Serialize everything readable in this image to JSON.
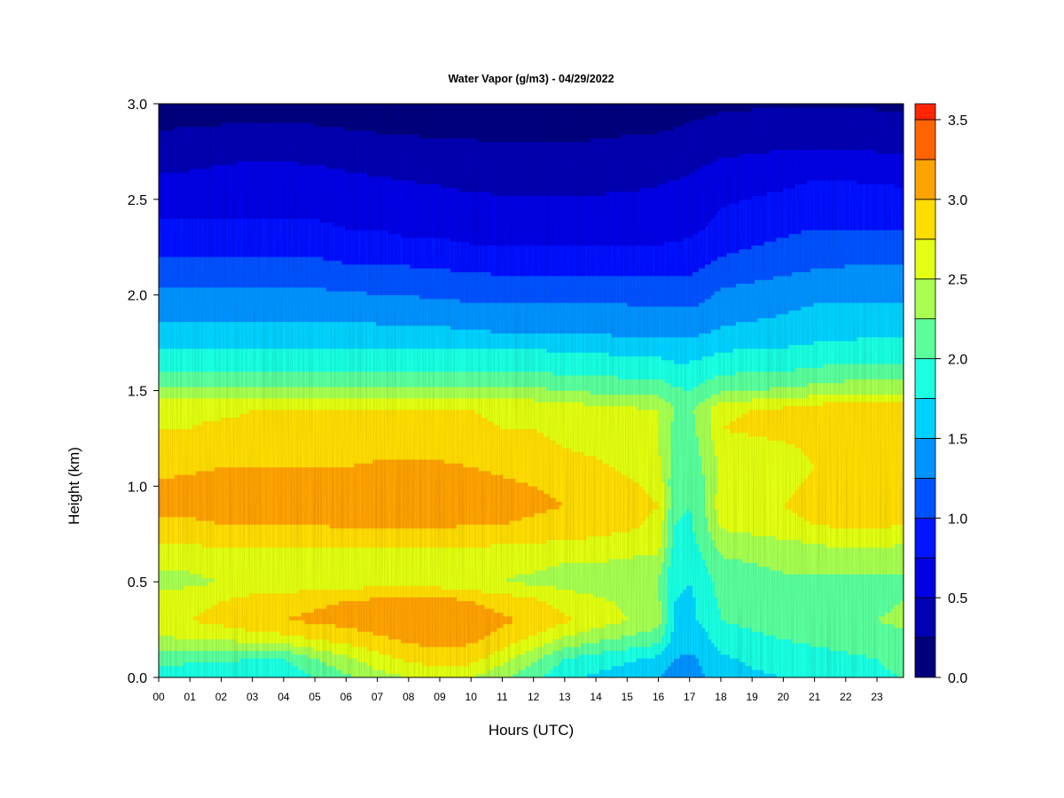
{
  "chart_data": {
    "type": "heatmap",
    "title": "Water Vapor (g/m3) - 04/29/2022",
    "xlabel": "Hours (UTC)",
    "ylabel": "Height (km)",
    "x_ticks": [
      "00",
      "01",
      "02",
      "03",
      "04",
      "05",
      "06",
      "07",
      "08",
      "09",
      "10",
      "11",
      "12",
      "13",
      "14",
      "15",
      "16",
      "17",
      "18",
      "19",
      "20",
      "21",
      "22",
      "23"
    ],
    "xlim": [
      0,
      23.85
    ],
    "ylim": [
      0,
      3.0
    ],
    "y_ticks": [
      "0.0",
      "0.5",
      "1.0",
      "1.5",
      "2.0",
      "2.5",
      "3.0"
    ],
    "colorbar": {
      "range": [
        0,
        3.6
      ],
      "tick_labels": [
        "0.0",
        "0.5",
        "1.0",
        "1.5",
        "2.0",
        "2.5",
        "3.0",
        "3.5"
      ],
      "levels": [
        0.0,
        0.25,
        0.5,
        0.75,
        1.0,
        1.25,
        1.5,
        1.75,
        2.0,
        2.25,
        2.5,
        2.75,
        3.0,
        3.25,
        3.5,
        3.6
      ],
      "colors": [
        "#00007f",
        "#0000b2",
        "#0000e5",
        "#0016ff",
        "#0052ff",
        "#0093ff",
        "#00d2ff",
        "#1dffe2",
        "#5aff9c",
        "#a6ff51",
        "#e2ff14",
        "#ffdd00",
        "#ffa300",
        "#ff6400",
        "#ff2500",
        "#e50000",
        "#b40000",
        "#800000"
      ]
    },
    "height_levels_km": [
      0.0,
      0.1,
      0.2,
      0.3,
      0.4,
      0.5,
      0.6,
      0.7,
      0.8,
      0.9,
      1.0,
      1.1,
      1.2,
      1.3,
      1.4,
      1.5,
      1.6,
      1.7,
      1.8,
      1.9,
      2.0,
      2.1,
      2.2,
      2.3,
      2.4,
      2.5,
      2.6,
      2.7,
      2.8,
      2.9,
      3.0
    ],
    "time_hours": [
      0,
      1,
      2,
      3,
      4,
      5,
      6,
      7,
      8,
      9,
      10,
      11,
      12,
      13,
      14,
      15,
      16,
      16.5,
      17,
      17.5,
      18,
      19,
      20,
      21,
      22,
      23,
      23.85
    ],
    "values": [
      [
        1.9,
        1.85,
        1.85,
        1.8,
        1.8,
        2.0,
        2.2,
        2.4,
        2.5,
        2.6,
        2.5,
        2.3,
        2.05,
        1.8,
        1.7,
        1.6,
        1.5,
        1.4,
        1.4,
        1.5,
        1.6,
        1.7,
        1.75,
        1.8,
        1.85,
        1.95,
        2.0
      ],
      [
        2.1,
        2.05,
        2.05,
        2.0,
        2.0,
        2.25,
        2.45,
        2.65,
        2.8,
        2.9,
        2.85,
        2.6,
        2.3,
        2.0,
        1.9,
        1.8,
        1.7,
        1.5,
        1.45,
        1.55,
        1.7,
        1.8,
        1.85,
        1.9,
        1.95,
        2.0,
        2.1
      ],
      [
        2.45,
        2.5,
        2.5,
        2.6,
        2.65,
        2.75,
        2.85,
        2.95,
        3.05,
        3.1,
        3.05,
        2.9,
        2.7,
        2.45,
        2.3,
        2.2,
        2.1,
        1.65,
        1.6,
        1.7,
        1.9,
        1.95,
        2.0,
        2.05,
        2.1,
        2.15,
        2.2
      ],
      [
        2.7,
        2.75,
        2.85,
        2.95,
        3.0,
        3.05,
        3.1,
        3.15,
        3.2,
        3.2,
        3.15,
        3.05,
        2.95,
        2.8,
        2.65,
        2.5,
        2.35,
        1.75,
        1.7,
        1.8,
        2.0,
        2.05,
        2.1,
        2.15,
        2.2,
        2.25,
        2.3
      ],
      [
        2.6,
        2.65,
        2.75,
        2.85,
        2.9,
        2.95,
        3.0,
        3.05,
        3.1,
        3.1,
        3.0,
        2.9,
        2.8,
        2.65,
        2.55,
        2.45,
        2.3,
        1.75,
        1.7,
        1.85,
        2.05,
        2.1,
        2.15,
        2.2,
        2.2,
        2.2,
        2.25
      ],
      [
        2.4,
        2.45,
        2.5,
        2.55,
        2.55,
        2.6,
        2.6,
        2.65,
        2.65,
        2.6,
        2.55,
        2.5,
        2.45,
        2.4,
        2.35,
        2.3,
        2.25,
        1.8,
        1.75,
        1.9,
        2.1,
        2.15,
        2.2,
        2.2,
        2.2,
        2.2,
        2.2
      ],
      [
        2.55,
        2.55,
        2.6,
        2.6,
        2.6,
        2.6,
        2.6,
        2.6,
        2.6,
        2.6,
        2.6,
        2.55,
        2.55,
        2.5,
        2.5,
        2.45,
        2.4,
        1.85,
        1.8,
        2.0,
        2.2,
        2.25,
        2.3,
        2.35,
        2.35,
        2.35,
        2.3
      ],
      [
        2.75,
        2.75,
        2.8,
        2.8,
        2.8,
        2.8,
        2.8,
        2.8,
        2.8,
        2.8,
        2.8,
        2.75,
        2.75,
        2.7,
        2.7,
        2.65,
        2.6,
        1.95,
        1.9,
        2.1,
        2.35,
        2.4,
        2.45,
        2.5,
        2.55,
        2.55,
        2.5
      ],
      [
        2.95,
        2.95,
        3.0,
        3.0,
        3.0,
        3.0,
        3.05,
        3.05,
        3.05,
        3.05,
        3.0,
        3.0,
        2.95,
        2.9,
        2.85,
        2.8,
        2.7,
        2.0,
        1.95,
        2.2,
        2.55,
        2.6,
        2.65,
        2.75,
        2.8,
        2.8,
        2.75
      ],
      [
        3.1,
        3.1,
        3.1,
        3.1,
        3.15,
        3.15,
        3.15,
        3.2,
        3.2,
        3.2,
        3.15,
        3.1,
        3.05,
        3.0,
        2.95,
        2.85,
        2.75,
        2.05,
        2.0,
        2.25,
        2.65,
        2.7,
        2.75,
        2.85,
        2.9,
        2.9,
        2.85
      ],
      [
        3.05,
        3.1,
        3.1,
        3.1,
        3.15,
        3.15,
        3.15,
        3.15,
        3.15,
        3.15,
        3.1,
        3.05,
        3.0,
        2.95,
        2.9,
        2.8,
        2.7,
        2.05,
        2.0,
        2.25,
        2.6,
        2.65,
        2.7,
        2.8,
        2.85,
        2.85,
        2.8
      ],
      [
        2.9,
        2.95,
        3.0,
        3.0,
        3.0,
        3.0,
        3.0,
        3.05,
        3.05,
        3.05,
        3.0,
        2.95,
        2.9,
        2.85,
        2.8,
        2.7,
        2.6,
        2.1,
        2.05,
        2.3,
        2.55,
        2.6,
        2.65,
        2.75,
        2.8,
        2.8,
        2.75
      ],
      [
        2.8,
        2.8,
        2.85,
        2.85,
        2.85,
        2.85,
        2.85,
        2.9,
        2.9,
        2.9,
        2.85,
        2.8,
        2.8,
        2.75,
        2.7,
        2.6,
        2.5,
        2.15,
        2.1,
        2.35,
        2.6,
        2.65,
        2.7,
        2.8,
        2.85,
        2.85,
        2.8
      ],
      [
        2.75,
        2.75,
        2.8,
        2.8,
        2.8,
        2.8,
        2.8,
        2.8,
        2.8,
        2.8,
        2.8,
        2.75,
        2.75,
        2.7,
        2.65,
        2.6,
        2.5,
        2.2,
        2.15,
        2.4,
        2.75,
        2.8,
        2.85,
        2.95,
        3.0,
        3.0,
        2.95
      ],
      [
        2.7,
        2.7,
        2.7,
        2.75,
        2.75,
        2.75,
        2.75,
        2.75,
        2.75,
        2.75,
        2.75,
        2.7,
        2.7,
        2.65,
        2.6,
        2.55,
        2.5,
        2.25,
        2.2,
        2.4,
        2.7,
        2.75,
        2.8,
        2.9,
        2.95,
        2.95,
        2.9
      ],
      [
        2.3,
        2.3,
        2.3,
        2.3,
        2.3,
        2.3,
        2.3,
        2.3,
        2.3,
        2.3,
        2.3,
        2.3,
        2.3,
        2.25,
        2.2,
        2.2,
        2.15,
        2.05,
        2.0,
        2.1,
        2.2,
        2.25,
        2.3,
        2.35,
        2.4,
        2.4,
        2.4
      ],
      [
        2.0,
        2.0,
        2.0,
        2.0,
        2.0,
        2.0,
        2.0,
        2.0,
        2.0,
        2.0,
        2.0,
        2.0,
        2.0,
        1.95,
        1.95,
        1.9,
        1.9,
        1.85,
        1.85,
        1.9,
        1.95,
        2.0,
        2.0,
        2.05,
        2.1,
        2.1,
        2.1
      ],
      [
        1.8,
        1.8,
        1.8,
        1.8,
        1.8,
        1.8,
        1.8,
        1.8,
        1.8,
        1.8,
        1.8,
        1.8,
        1.8,
        1.75,
        1.75,
        1.7,
        1.7,
        1.65,
        1.65,
        1.7,
        1.75,
        1.8,
        1.8,
        1.85,
        1.85,
        1.9,
        1.9
      ],
      [
        1.6,
        1.6,
        1.6,
        1.6,
        1.6,
        1.6,
        1.6,
        1.6,
        1.6,
        1.55,
        1.55,
        1.5,
        1.5,
        1.5,
        1.5,
        1.45,
        1.45,
        1.45,
        1.45,
        1.5,
        1.55,
        1.6,
        1.6,
        1.65,
        1.7,
        1.7,
        1.7
      ],
      [
        1.45,
        1.45,
        1.45,
        1.45,
        1.45,
        1.45,
        1.45,
        1.4,
        1.4,
        1.4,
        1.35,
        1.35,
        1.35,
        1.35,
        1.3,
        1.3,
        1.3,
        1.3,
        1.3,
        1.35,
        1.4,
        1.45,
        1.5,
        1.55,
        1.55,
        1.55,
        1.55
      ],
      [
        1.3,
        1.3,
        1.3,
        1.3,
        1.3,
        1.3,
        1.3,
        1.25,
        1.25,
        1.2,
        1.2,
        1.2,
        1.2,
        1.2,
        1.2,
        1.2,
        1.15,
        1.15,
        1.15,
        1.2,
        1.3,
        1.35,
        1.4,
        1.45,
        1.45,
        1.45,
        1.45
      ],
      [
        1.15,
        1.15,
        1.15,
        1.15,
        1.15,
        1.15,
        1.1,
        1.1,
        1.1,
        1.05,
        1.05,
        1.0,
        1.0,
        1.0,
        1.0,
        1.0,
        1.0,
        1.0,
        1.0,
        1.05,
        1.15,
        1.2,
        1.25,
        1.3,
        1.3,
        1.3,
        1.3
      ],
      [
        1.0,
        1.0,
        1.0,
        1.0,
        1.0,
        1.0,
        0.95,
        0.95,
        0.9,
        0.9,
        0.85,
        0.85,
        0.85,
        0.85,
        0.85,
        0.85,
        0.85,
        0.85,
        0.9,
        0.95,
        1.0,
        1.05,
        1.1,
        1.15,
        1.2,
        1.2,
        1.2
      ],
      [
        0.85,
        0.85,
        0.85,
        0.85,
        0.85,
        0.85,
        0.8,
        0.8,
        0.75,
        0.75,
        0.7,
        0.7,
        0.7,
        0.7,
        0.7,
        0.7,
        0.7,
        0.72,
        0.75,
        0.8,
        0.9,
        0.95,
        1.0,
        1.05,
        1.05,
        1.05,
        1.05
      ],
      [
        0.75,
        0.75,
        0.75,
        0.75,
        0.75,
        0.75,
        0.7,
        0.7,
        0.65,
        0.65,
        0.6,
        0.6,
        0.6,
        0.6,
        0.6,
        0.6,
        0.62,
        0.64,
        0.66,
        0.7,
        0.8,
        0.85,
        0.9,
        0.95,
        0.95,
        0.95,
        0.95
      ],
      [
        0.65,
        0.65,
        0.68,
        0.7,
        0.7,
        0.65,
        0.6,
        0.58,
        0.55,
        0.55,
        0.52,
        0.52,
        0.52,
        0.52,
        0.52,
        0.52,
        0.55,
        0.57,
        0.6,
        0.65,
        0.72,
        0.76,
        0.8,
        0.85,
        0.85,
        0.85,
        0.85
      ],
      [
        0.55,
        0.55,
        0.58,
        0.6,
        0.6,
        0.58,
        0.55,
        0.52,
        0.5,
        0.48,
        0.46,
        0.45,
        0.45,
        0.45,
        0.45,
        0.46,
        0.48,
        0.5,
        0.52,
        0.56,
        0.62,
        0.66,
        0.7,
        0.75,
        0.75,
        0.72,
        0.7
      ],
      [
        0.42,
        0.45,
        0.48,
        0.5,
        0.5,
        0.48,
        0.45,
        0.42,
        0.4,
        0.38,
        0.36,
        0.35,
        0.35,
        0.35,
        0.36,
        0.38,
        0.4,
        0.42,
        0.45,
        0.48,
        0.52,
        0.55,
        0.58,
        0.6,
        0.6,
        0.58,
        0.55
      ],
      [
        0.3,
        0.32,
        0.34,
        0.35,
        0.35,
        0.34,
        0.32,
        0.3,
        0.28,
        0.27,
        0.26,
        0.25,
        0.25,
        0.25,
        0.26,
        0.28,
        0.3,
        0.32,
        0.35,
        0.38,
        0.4,
        0.42,
        0.44,
        0.45,
        0.44,
        0.42,
        0.4
      ],
      [
        0.22,
        0.23,
        0.24,
        0.25,
        0.25,
        0.24,
        0.22,
        0.2,
        0.19,
        0.18,
        0.18,
        0.17,
        0.17,
        0.17,
        0.18,
        0.19,
        0.2,
        0.22,
        0.25,
        0.28,
        0.3,
        0.32,
        0.33,
        0.34,
        0.33,
        0.32,
        0.3
      ],
      [
        0.15,
        0.15,
        0.16,
        0.17,
        0.17,
        0.16,
        0.15,
        0.14,
        0.13,
        0.12,
        0.12,
        0.12,
        0.12,
        0.12,
        0.12,
        0.13,
        0.14,
        0.15,
        0.17,
        0.19,
        0.21,
        0.22,
        0.23,
        0.24,
        0.23,
        0.22,
        0.2
      ]
    ]
  }
}
